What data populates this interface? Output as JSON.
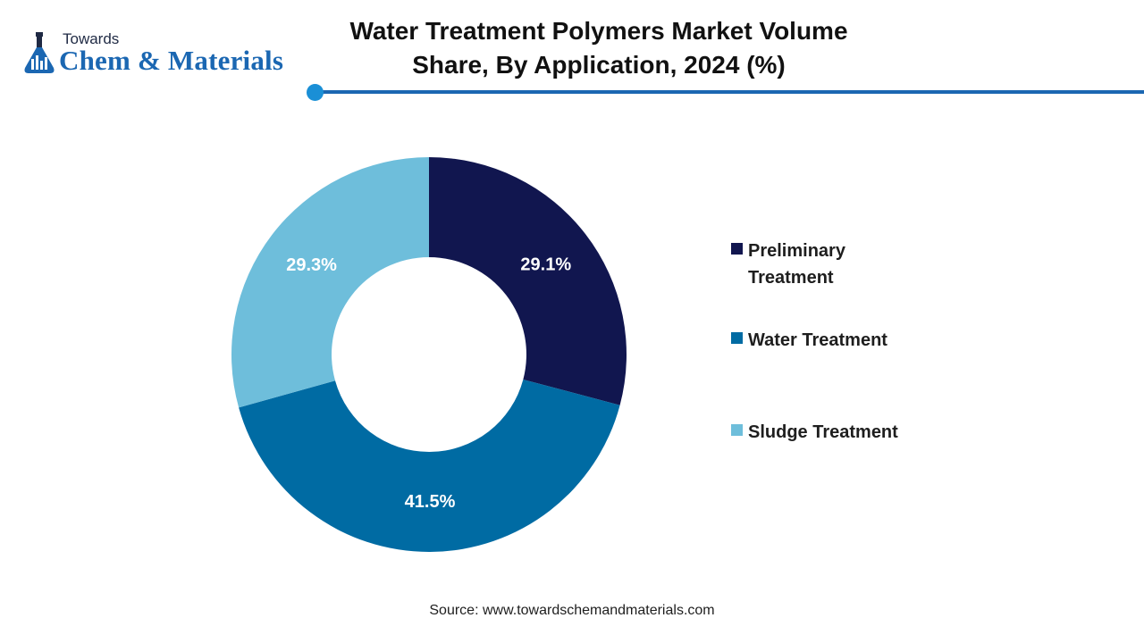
{
  "logo": {
    "top_text": "Towards",
    "brand_text": "Chem & Materials"
  },
  "chart_data": {
    "type": "pie",
    "variant": "donut",
    "title": "Water Treatment Polymers Market Volume Share, By Application, 2024 (%)",
    "categories": [
      "Preliminary Treatment",
      "Water Treatment",
      "Sludge Treatment"
    ],
    "values": [
      29.1,
      41.5,
      29.3
    ],
    "data_labels": [
      "29.1%",
      "41.5%",
      "29.3%"
    ],
    "colors": [
      "#11164f",
      "#006ba3",
      "#6ebedb"
    ],
    "legend_position": "right"
  },
  "source": "Source: www.towardschemandmaterials.com",
  "colors": {
    "accent_blue": "#1b67b2",
    "accent_light": "#1a8fd6"
  }
}
